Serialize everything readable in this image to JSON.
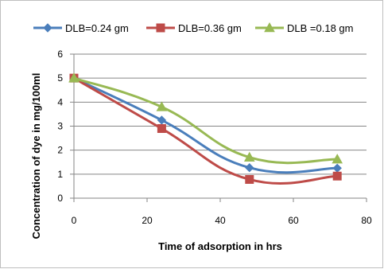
{
  "chart_data": {
    "type": "line",
    "title": "",
    "xlabel": "Time of adsorption in hrs",
    "ylabel": "Concentration of dye in mg/100ml",
    "xlim": [
      0,
      80
    ],
    "ylim": [
      0,
      6
    ],
    "xticks": [
      0,
      20,
      40,
      60,
      80
    ],
    "yticks": [
      0,
      1,
      2,
      3,
      4,
      5,
      6
    ],
    "grid": "horizontal",
    "legend_position": "top",
    "series": [
      {
        "name": "DLB=0.24 gm",
        "color": "#4a7ebb",
        "marker": "diamond",
        "x": [
          0,
          24,
          48,
          72
        ],
        "y": [
          5,
          3.25,
          1.27,
          1.25
        ]
      },
      {
        "name": "DLB=0.36 gm",
        "color": "#be4b48",
        "marker": "square",
        "x": [
          0,
          24,
          48,
          72
        ],
        "y": [
          5,
          2.9,
          0.78,
          0.92
        ]
      },
      {
        "name": "DLB =0.18 gm",
        "color": "#98b954",
        "marker": "triangle",
        "x": [
          0,
          24,
          48,
          72
        ],
        "y": [
          5,
          3.8,
          1.7,
          1.62
        ]
      }
    ]
  }
}
